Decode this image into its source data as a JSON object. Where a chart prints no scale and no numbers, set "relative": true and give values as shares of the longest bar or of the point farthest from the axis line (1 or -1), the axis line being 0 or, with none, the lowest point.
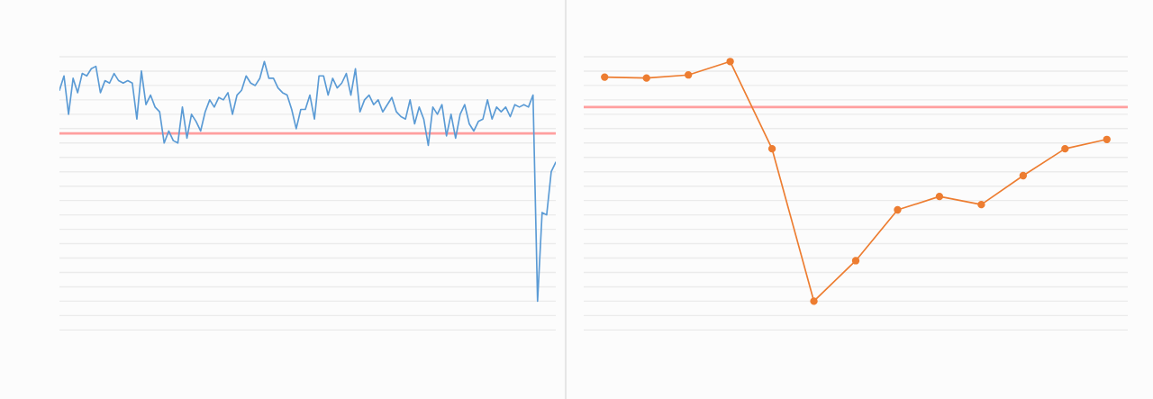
{
  "chart_data": [
    {
      "type": "line",
      "relative": true,
      "grid": "y",
      "marker": "none",
      "line_style": "solid",
      "categories": [
        null,
        null,
        null,
        null,
        null,
        null,
        null,
        null,
        null,
        null,
        null,
        null,
        null,
        null,
        null,
        null,
        null,
        null,
        null,
        null,
        null,
        null,
        null,
        null,
        null,
        null,
        null,
        null,
        null,
        null,
        null,
        null,
        null,
        null,
        null,
        null,
        null,
        null,
        null,
        null,
        null,
        null,
        null,
        null,
        null,
        null,
        null,
        null,
        null,
        null,
        null,
        null,
        null,
        null,
        null,
        null,
        null,
        null,
        null,
        null,
        null,
        null,
        null,
        null,
        null,
        null,
        null,
        null,
        null,
        null,
        null,
        null,
        null,
        null,
        null,
        null,
        null,
        null,
        null,
        null,
        null,
        null,
        null,
        null,
        null,
        null,
        null,
        null,
        null,
        null,
        null,
        null,
        null,
        null,
        null,
        null,
        null,
        null,
        null,
        null,
        null,
        null,
        null,
        null,
        null,
        null,
        null,
        null,
        null,
        null
      ],
      "series": [
        {
          "color": "#5b9bd5",
          "values": [
            0.88,
            0.94,
            0.78,
            0.93,
            0.87,
            0.95,
            0.94,
            0.97,
            0.98,
            0.87,
            0.92,
            0.91,
            0.95,
            0.92,
            0.91,
            0.92,
            0.91,
            0.76,
            0.96,
            0.82,
            0.86,
            0.81,
            0.79,
            0.66,
            0.71,
            0.67,
            0.66,
            0.81,
            0.68,
            0.78,
            0.75,
            0.71,
            0.79,
            0.84,
            0.81,
            0.85,
            0.84,
            0.87,
            0.78,
            0.86,
            0.88,
            0.94,
            0.91,
            0.9,
            0.93,
            1,
            0.93,
            0.93,
            0.89,
            0.87,
            0.86,
            0.8,
            0.72,
            0.8,
            0.8,
            0.86,
            0.76,
            0.94,
            0.94,
            0.86,
            0.93,
            0.89,
            0.91,
            0.95,
            0.86,
            0.97,
            0.79,
            0.84,
            0.86,
            0.82,
            0.84,
            0.79,
            0.82,
            0.85,
            0.79,
            0.77,
            0.76,
            0.84,
            0.74,
            0.81,
            0.76,
            0.65,
            0.81,
            0.78,
            0.82,
            0.69,
            0.78,
            0.68,
            0.78,
            0.82,
            0.74,
            0.71,
            0.75,
            0.76,
            0.84,
            0.76,
            0.81,
            0.79,
            0.81,
            0.77,
            0.82,
            0.81,
            0.82,
            0.81,
            0.86,
            0,
            0.37,
            0.36,
            0.54,
            0.58
          ]
        }
      ],
      "ref_lines": [
        {
          "axis": "y",
          "value": 0.7,
          "color": "#ff9f9f"
        }
      ]
    },
    {
      "type": "line",
      "relative": true,
      "grid": "y",
      "marker": "circle",
      "line_style": "solid",
      "categories": [
        null,
        null,
        null,
        null,
        null,
        null,
        null,
        null,
        null,
        null,
        null,
        null,
        null
      ],
      "series": [
        {
          "color": "#ed7d31",
          "values": [
            0.935,
            0.931,
            0.944,
            1,
            0.636,
            0,
            0.169,
            0.381,
            0.437,
            0.403,
            0.524,
            0.636,
            0.675
          ]
        }
      ],
      "ref_lines": [
        {
          "axis": "y",
          "value": 0.81,
          "color": "#ff9f9f"
        }
      ]
    }
  ]
}
